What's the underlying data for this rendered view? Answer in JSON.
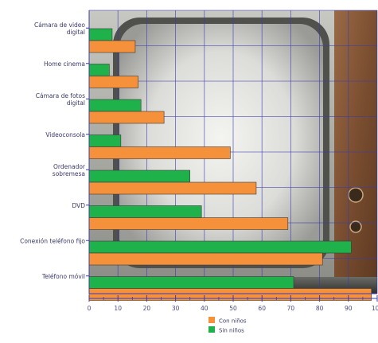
{
  "chart_data": {
    "type": "bar",
    "orientation": "horizontal",
    "title": "",
    "xlabel": "",
    "ylabel": "",
    "xlim": [
      0,
      100
    ],
    "xticks": [
      0,
      10,
      20,
      30,
      40,
      50,
      60,
      70,
      80,
      90,
      100
    ],
    "grid": true,
    "legend_position": "bottom-center",
    "categories": [
      [
        "Cámara de video",
        "digital"
      ],
      [
        "Home cinema"
      ],
      [
        "Cámara de fotos",
        "digital"
      ],
      [
        "Videoconsola"
      ],
      [
        "Ordenador",
        "sobremesa"
      ],
      [
        "DVD"
      ],
      [
        "Conexión teléfono fijo"
      ],
      [
        "Teléfono móvil"
      ]
    ],
    "series": [
      {
        "name": "Con niños",
        "color": "#f5913a",
        "values": [
          16,
          17,
          26,
          49,
          58,
          69,
          81,
          98
        ]
      },
      {
        "name": "Sin niños",
        "color": "#1fb14a",
        "values": [
          8,
          7,
          18,
          11,
          35,
          39,
          91,
          71
        ]
      }
    ],
    "background": "vintage-television-photo"
  }
}
